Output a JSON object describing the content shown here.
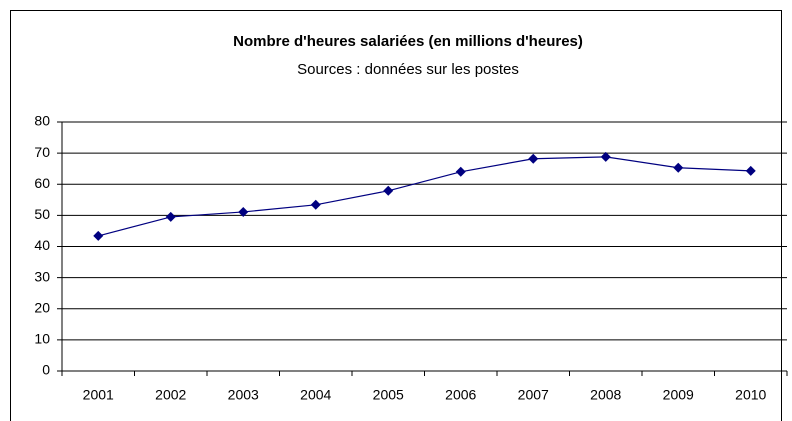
{
  "chart_data": {
    "type": "line",
    "title": "Nombre d'heures salariées (en millions d'heures)",
    "subtitle": "Sources : données sur les postes",
    "categories": [
      "2001",
      "2002",
      "2003",
      "2004",
      "2005",
      "2006",
      "2007",
      "2008",
      "2009",
      "2010"
    ],
    "values": [
      43.4,
      49.5,
      51.1,
      53.4,
      57.9,
      64,
      68.2,
      68.8,
      65.3,
      64.3
    ],
    "color": "#000080",
    "ylim": [
      0,
      80
    ],
    "yticks": [
      0,
      10,
      20,
      30,
      40,
      50,
      60,
      70,
      80
    ],
    "grid": true
  }
}
